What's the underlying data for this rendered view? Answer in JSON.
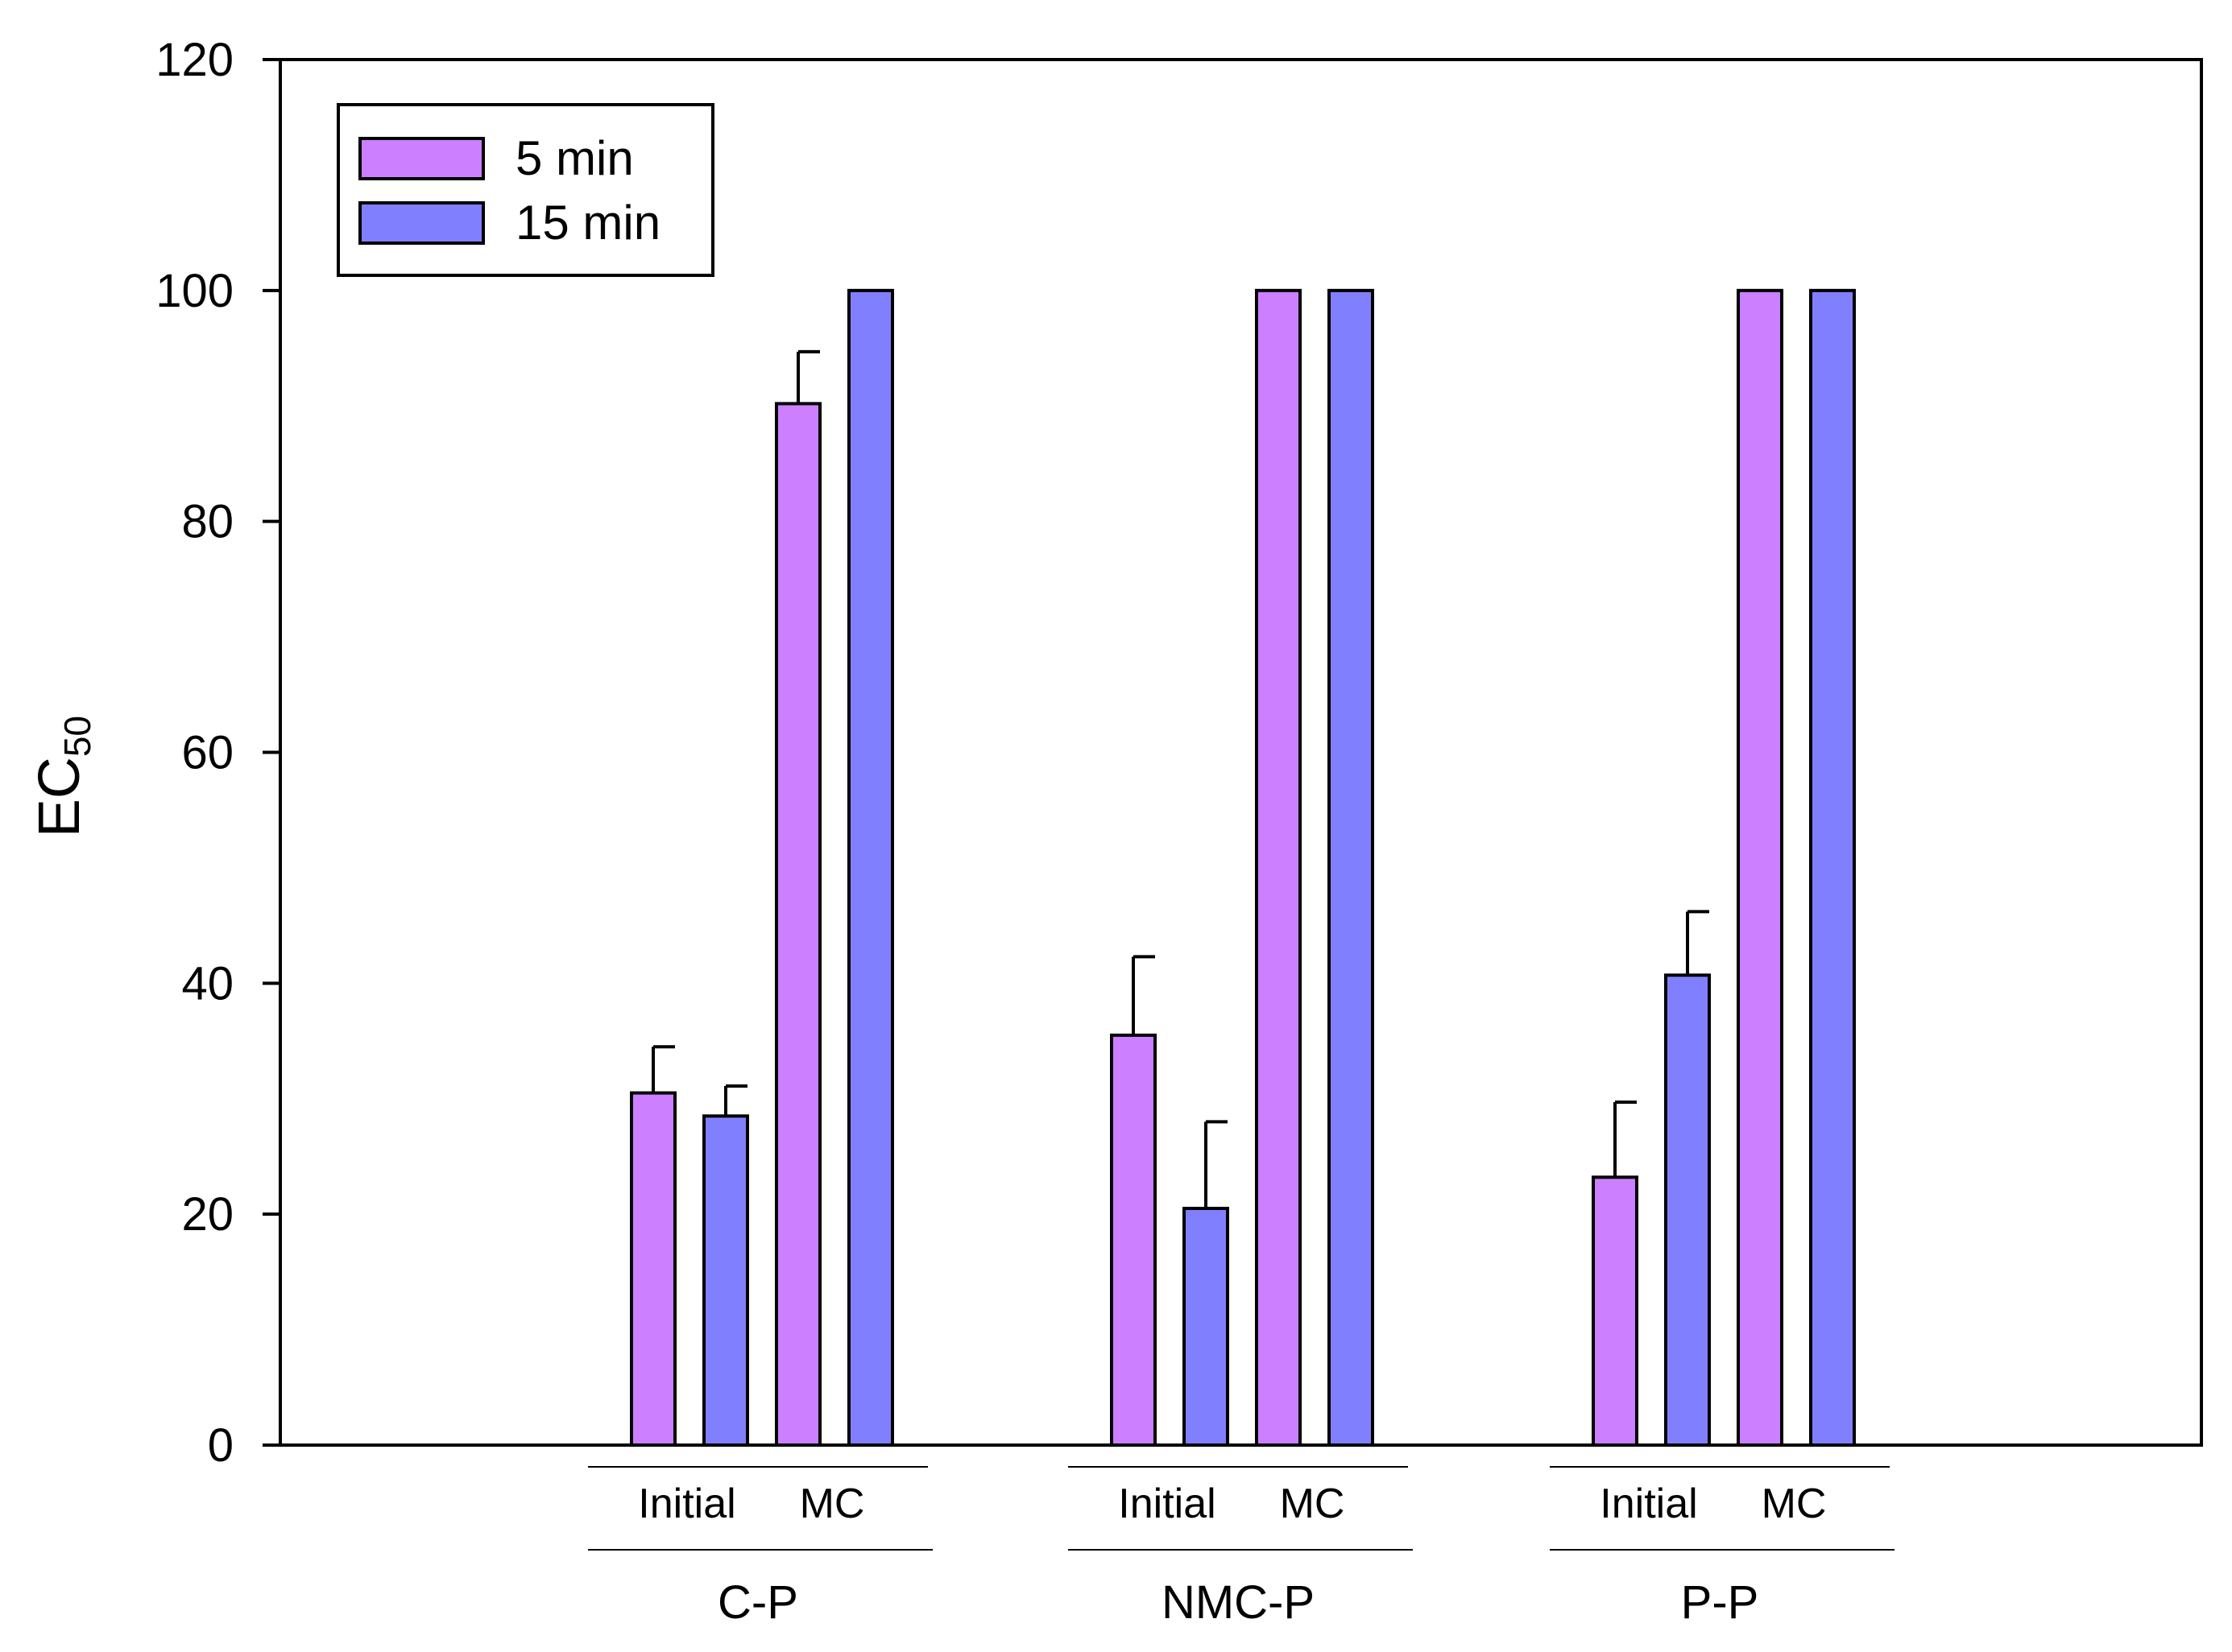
{
  "chart_data": {
    "type": "bar",
    "title": "",
    "ylabel": {
      "main": "EC",
      "subscript": "50"
    },
    "xlabel": "",
    "ylim": [
      0,
      120
    ],
    "yticks": [
      0,
      20,
      40,
      60,
      80,
      100,
      120
    ],
    "grid": false,
    "legend": {
      "position": "top-left",
      "entries": [
        {
          "name": "5 min",
          "color": "#cc80ff"
        },
        {
          "name": "15 min",
          "color": "#8080ff"
        }
      ]
    },
    "groups": [
      {
        "label": "C-P",
        "subgroups": [
          {
            "label": "Initial",
            "bars": [
              {
                "series": "5 min",
                "value": 30.5,
                "error": 4.0
              },
              {
                "series": "15 min",
                "value": 28.5,
                "error": 2.6
              }
            ]
          },
          {
            "label": "MC",
            "bars": [
              {
                "series": "5 min",
                "value": 90.2,
                "error": 4.5
              },
              {
                "series": "15 min",
                "value": 100,
                "error": 0
              }
            ]
          }
        ]
      },
      {
        "label": "NMC-P",
        "subgroups": [
          {
            "label": "Initial",
            "bars": [
              {
                "series": "5 min",
                "value": 35.5,
                "error": 6.8
              },
              {
                "series": "15 min",
                "value": 20.5,
                "error": 7.5
              }
            ]
          },
          {
            "label": "MC",
            "bars": [
              {
                "series": "5 min",
                "value": 100,
                "error": 0
              },
              {
                "series": "15 min",
                "value": 100,
                "error": 0
              }
            ]
          }
        ]
      },
      {
        "label": "P-P",
        "subgroups": [
          {
            "label": "Initial",
            "bars": [
              {
                "series": "5 min",
                "value": 23.2,
                "error": 6.5
              },
              {
                "series": "15 min",
                "value": 40.7,
                "error": 5.5
              }
            ]
          },
          {
            "label": "MC",
            "bars": [
              {
                "series": "5 min",
                "value": 100,
                "error": 0
              },
              {
                "series": "15 min",
                "value": 100,
                "error": 0
              }
            ]
          }
        ]
      }
    ],
    "colors": {
      "five_min": "#cc80ff",
      "fifteen_min": "#8080ff",
      "stroke": "#000000"
    }
  }
}
